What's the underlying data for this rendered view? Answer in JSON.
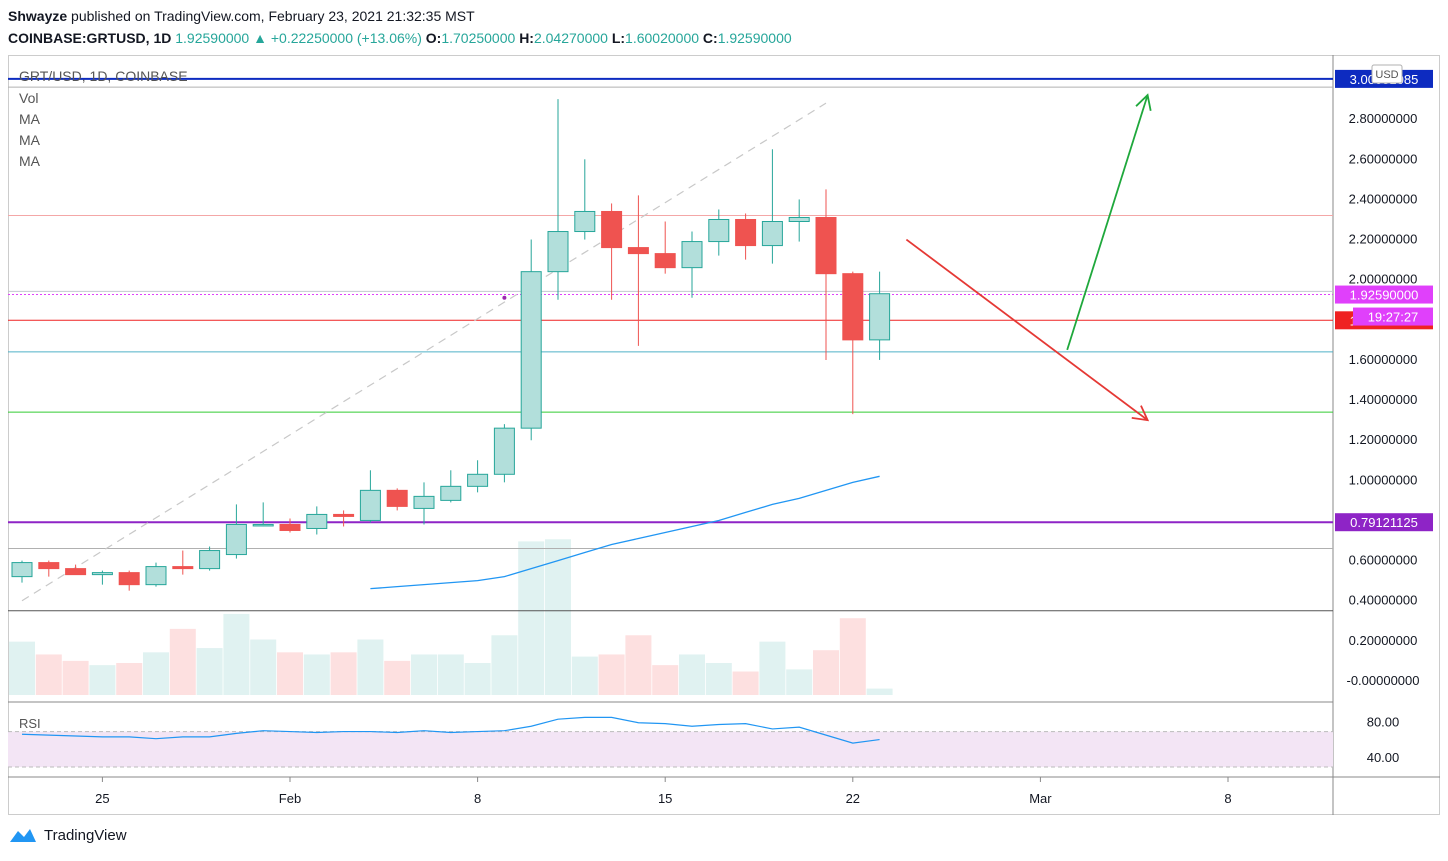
{
  "header": {
    "author": "Shwayze",
    "published_text": "published on TradingView.com, February 23, 2021 21:32:35 MST",
    "symbol_line": "COINBASE:GRTUSD, 1D",
    "last": "1.92590000",
    "change": "+0.22250000 (+13.06%)",
    "o_label": "O:",
    "o": "1.70250000",
    "h_label": "H:",
    "h": "2.04270000",
    "l_label": "L:",
    "l": "1.60020000",
    "c_label": "C:",
    "c": "1.92590000"
  },
  "pane_legend": {
    "title": "GRT/USD, 1D, COINBASE",
    "vol": "Vol",
    "ma1": "MA",
    "ma2": "MA",
    "ma3": "MA"
  },
  "rsi": {
    "label": "RSI",
    "ticks": [
      "80.00",
      "40.00"
    ],
    "band": [
      70,
      30
    ],
    "ylim": [
      21,
      100
    ]
  },
  "footer": {
    "brand": "TradingView"
  },
  "colors": {
    "up": "#26a69a",
    "up_fill": "#b2dfdb",
    "down": "#ef5350",
    "ma": "#2196f3",
    "axis_text": "#131722",
    "rsi_line": "#2196f3",
    "rsi_band": "#f3e5f5"
  },
  "chart_data": {
    "type": "candlestick",
    "currency": "USD",
    "ylim": [
      -0.07,
      3.08
    ],
    "y_ticks": [
      "2.80000000",
      "2.60000000",
      "2.40000000",
      "2.20000000",
      "2.00000000",
      "1.60000000",
      "1.40000000",
      "1.20000000",
      "1.00000000",
      "0.60000000",
      "0.40000000",
      "0.20000000",
      "-0.00000000"
    ],
    "x_ticks": [
      {
        "label": "25",
        "date": "2021-01-25"
      },
      {
        "label": "Feb",
        "date": "2021-02-01"
      },
      {
        "label": "8",
        "date": "2021-02-08"
      },
      {
        "label": "15",
        "date": "2021-02-15"
      },
      {
        "label": "22",
        "date": "2021-02-22"
      },
      {
        "label": "Mar",
        "date": "2021-03-01"
      },
      {
        "label": "8",
        "date": "2021-03-08"
      }
    ],
    "candles": [
      {
        "date": "2021-01-22",
        "o": 0.52,
        "h": 0.6,
        "l": 0.49,
        "c": 0.59
      },
      {
        "date": "2021-01-23",
        "o": 0.59,
        "h": 0.6,
        "l": 0.52,
        "c": 0.56
      },
      {
        "date": "2021-01-24",
        "o": 0.56,
        "h": 0.58,
        "l": 0.53,
        "c": 0.53
      },
      {
        "date": "2021-01-25",
        "o": 0.53,
        "h": 0.55,
        "l": 0.48,
        "c": 0.54
      },
      {
        "date": "2021-01-26",
        "o": 0.54,
        "h": 0.55,
        "l": 0.45,
        "c": 0.48
      },
      {
        "date": "2021-01-27",
        "o": 0.48,
        "h": 0.59,
        "l": 0.47,
        "c": 0.57
      },
      {
        "date": "2021-01-28",
        "o": 0.57,
        "h": 0.65,
        "l": 0.53,
        "c": 0.56
      },
      {
        "date": "2021-01-29",
        "o": 0.56,
        "h": 0.67,
        "l": 0.55,
        "c": 0.65
      },
      {
        "date": "2021-01-30",
        "o": 0.63,
        "h": 0.88,
        "l": 0.61,
        "c": 0.78
      },
      {
        "date": "2021-01-31",
        "o": 0.78,
        "h": 0.89,
        "l": 0.77,
        "c": 0.78
      },
      {
        "date": "2021-02-01",
        "o": 0.78,
        "h": 0.81,
        "l": 0.74,
        "c": 0.75
      },
      {
        "date": "2021-02-02",
        "o": 0.76,
        "h": 0.87,
        "l": 0.73,
        "c": 0.83
      },
      {
        "date": "2021-02-03",
        "o": 0.83,
        "h": 0.85,
        "l": 0.77,
        "c": 0.82
      },
      {
        "date": "2021-02-04",
        "o": 0.8,
        "h": 1.05,
        "l": 0.79,
        "c": 0.95
      },
      {
        "date": "2021-02-05",
        "o": 0.95,
        "h": 0.96,
        "l": 0.85,
        "c": 0.87
      },
      {
        "date": "2021-02-06",
        "o": 0.86,
        "h": 0.99,
        "l": 0.78,
        "c": 0.92
      },
      {
        "date": "2021-02-07",
        "o": 0.9,
        "h": 1.05,
        "l": 0.89,
        "c": 0.97
      },
      {
        "date": "2021-02-08",
        "o": 0.97,
        "h": 1.1,
        "l": 0.94,
        "c": 1.03
      },
      {
        "date": "2021-02-09",
        "o": 1.03,
        "h": 1.28,
        "l": 0.99,
        "c": 1.26
      },
      {
        "date": "2021-02-10",
        "o": 1.26,
        "h": 2.2,
        "l": 1.2,
        "c": 2.04
      },
      {
        "date": "2021-02-11",
        "o": 2.04,
        "h": 2.9,
        "l": 1.9,
        "c": 2.24
      },
      {
        "date": "2021-02-12",
        "o": 2.24,
        "h": 2.6,
        "l": 2.2,
        "c": 2.34
      },
      {
        "date": "2021-02-13",
        "o": 2.34,
        "h": 2.38,
        "l": 1.9,
        "c": 2.16
      },
      {
        "date": "2021-02-14",
        "o": 2.16,
        "h": 2.42,
        "l": 1.67,
        "c": 2.13
      },
      {
        "date": "2021-02-15",
        "o": 2.13,
        "h": 2.29,
        "l": 2.03,
        "c": 2.06
      },
      {
        "date": "2021-02-16",
        "o": 2.06,
        "h": 2.24,
        "l": 1.91,
        "c": 2.19
      },
      {
        "date": "2021-02-17",
        "o": 2.19,
        "h": 2.35,
        "l": 2.12,
        "c": 2.3
      },
      {
        "date": "2021-02-18",
        "o": 2.3,
        "h": 2.33,
        "l": 2.1,
        "c": 2.17
      },
      {
        "date": "2021-02-19",
        "o": 2.17,
        "h": 2.65,
        "l": 2.08,
        "c": 2.29
      },
      {
        "date": "2021-02-20",
        "o": 2.29,
        "h": 2.4,
        "l": 2.19,
        "c": 2.31
      },
      {
        "date": "2021-02-21",
        "o": 2.31,
        "h": 2.45,
        "l": 1.6,
        "c": 2.03
      },
      {
        "date": "2021-02-22",
        "o": 2.03,
        "h": 2.04,
        "l": 1.33,
        "c": 1.7
      },
      {
        "date": "2021-02-23",
        "o": 1.7,
        "h": 2.04,
        "l": 1.6,
        "c": 1.93
      }
    ],
    "volume": [
      0.25,
      0.19,
      0.16,
      0.14,
      0.15,
      0.2,
      0.31,
      0.22,
      0.38,
      0.26,
      0.2,
      0.19,
      0.2,
      0.26,
      0.16,
      0.19,
      0.19,
      0.15,
      0.28,
      0.72,
      0.73,
      0.18,
      0.19,
      0.28,
      0.14,
      0.19,
      0.15,
      0.11,
      0.25,
      0.12,
      0.21,
      0.36,
      0.03
    ],
    "ma_line": [
      {
        "date": "2021-02-04",
        "v": 0.46
      },
      {
        "date": "2021-02-05",
        "v": 0.47
      },
      {
        "date": "2021-02-06",
        "v": 0.48
      },
      {
        "date": "2021-02-07",
        "v": 0.49
      },
      {
        "date": "2021-02-08",
        "v": 0.5
      },
      {
        "date": "2021-02-09",
        "v": 0.52
      },
      {
        "date": "2021-02-10",
        "v": 0.56
      },
      {
        "date": "2021-02-11",
        "v": 0.6
      },
      {
        "date": "2021-02-12",
        "v": 0.64
      },
      {
        "date": "2021-02-13",
        "v": 0.68
      },
      {
        "date": "2021-02-14",
        "v": 0.71
      },
      {
        "date": "2021-02-15",
        "v": 0.74
      },
      {
        "date": "2021-02-16",
        "v": 0.77
      },
      {
        "date": "2021-02-17",
        "v": 0.8
      },
      {
        "date": "2021-02-18",
        "v": 0.84
      },
      {
        "date": "2021-02-19",
        "v": 0.88
      },
      {
        "date": "2021-02-20",
        "v": 0.91
      },
      {
        "date": "2021-02-21",
        "v": 0.95
      },
      {
        "date": "2021-02-22",
        "v": 0.99
      },
      {
        "date": "2021-02-23",
        "v": 1.02
      }
    ],
    "rsi_line": [
      {
        "date": "2021-01-22",
        "v": 67
      },
      {
        "date": "2021-01-23",
        "v": 66
      },
      {
        "date": "2021-01-24",
        "v": 65
      },
      {
        "date": "2021-01-25",
        "v": 64
      },
      {
        "date": "2021-01-26",
        "v": 64
      },
      {
        "date": "2021-01-27",
        "v": 62
      },
      {
        "date": "2021-01-28",
        "v": 64
      },
      {
        "date": "2021-01-29",
        "v": 64
      },
      {
        "date": "2021-01-30",
        "v": 68
      },
      {
        "date": "2021-01-31",
        "v": 71
      },
      {
        "date": "2021-02-01",
        "v": 70
      },
      {
        "date": "2021-02-02",
        "v": 69
      },
      {
        "date": "2021-02-03",
        "v": 70
      },
      {
        "date": "2021-02-04",
        "v": 70
      },
      {
        "date": "2021-02-05",
        "v": 69
      },
      {
        "date": "2021-02-06",
        "v": 71
      },
      {
        "date": "2021-02-07",
        "v": 69
      },
      {
        "date": "2021-02-08",
        "v": 70
      },
      {
        "date": "2021-02-09",
        "v": 71
      },
      {
        "date": "2021-02-10",
        "v": 76
      },
      {
        "date": "2021-02-11",
        "v": 84
      },
      {
        "date": "2021-02-12",
        "v": 86
      },
      {
        "date": "2021-02-13",
        "v": 86
      },
      {
        "date": "2021-02-14",
        "v": 80
      },
      {
        "date": "2021-02-15",
        "v": 79
      },
      {
        "date": "2021-02-16",
        "v": 76
      },
      {
        "date": "2021-02-17",
        "v": 78
      },
      {
        "date": "2021-02-18",
        "v": 79
      },
      {
        "date": "2021-02-19",
        "v": 73
      },
      {
        "date": "2021-02-20",
        "v": 75
      },
      {
        "date": "2021-02-21",
        "v": 66
      },
      {
        "date": "2021-02-22",
        "v": 57
      },
      {
        "date": "2021-02-23",
        "v": 61
      }
    ],
    "horizontal_lines": [
      {
        "price": 3.00081085,
        "label": "3.00081085",
        "color": "#0d2bc0",
        "width": 2,
        "axis_badge": true
      },
      {
        "price": 2.96,
        "color": "#b0b0b0",
        "width": 1
      },
      {
        "price": 2.32,
        "color": "#f4a7a7",
        "width": 1
      },
      {
        "price": 1.942,
        "color": "#c2c8d0",
        "width": 1
      },
      {
        "price": 1.9259,
        "label": "1.92590000",
        "color": "#e040fb",
        "width": 1,
        "dotted": true,
        "axis_badge": true
      },
      {
        "price": 1.79753856,
        "label": "1.79753856",
        "color": "#ef2222",
        "width": 1,
        "axis_badge": true
      },
      {
        "price": 1.64,
        "color": "#4fb0c6",
        "width": 1
      },
      {
        "price": 1.34,
        "color": "#33cc33",
        "width": 1
      },
      {
        "price": 0.79121125,
        "label": "0.79121125",
        "color": "#8e24c6",
        "width": 2,
        "axis_badge": true
      },
      {
        "price": 0.66,
        "color": "#b0b0b0",
        "width": 1
      },
      {
        "price": 0.35,
        "color": "#555555",
        "width": 1
      }
    ],
    "countdown": "19:27:27",
    "trendline": {
      "from": {
        "date": "2021-01-22",
        "v": 0.4
      },
      "to": {
        "date": "2021-02-21",
        "v": 2.88
      },
      "style": "dashed"
    },
    "marker": {
      "date": "2021-02-09",
      "v": 1.91
    },
    "arrows": [
      {
        "color": "#e53935",
        "from": {
          "date": "2021-02-24",
          "v": 2.2
        },
        "to": {
          "date": "2021-03-05",
          "v": 1.3
        }
      },
      {
        "color": "#1fa83c",
        "from": {
          "date": "2021-03-02",
          "v": 1.65
        },
        "to": {
          "date": "2021-03-05",
          "v": 2.92
        }
      }
    ]
  }
}
